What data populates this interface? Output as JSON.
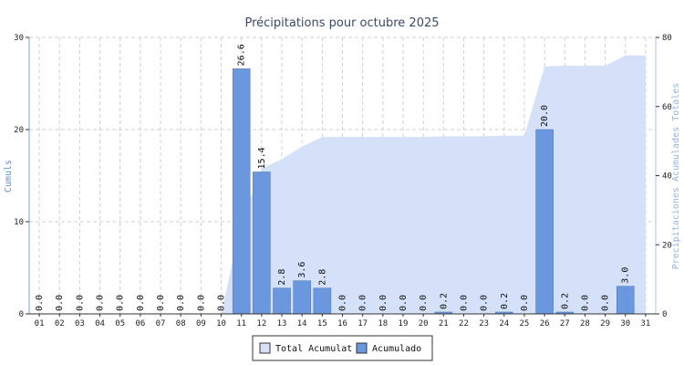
{
  "chart_data": {
    "type": "bar",
    "title": "Précipitations pour octubre 2025",
    "ylabel_left": "Cumuls",
    "ylabel_right": "Precipitaciones Acumulades Totales",
    "categories": [
      "01",
      "02",
      "03",
      "04",
      "05",
      "06",
      "07",
      "08",
      "09",
      "10",
      "11",
      "12",
      "13",
      "14",
      "15",
      "16",
      "17",
      "18",
      "19",
      "20",
      "21",
      "22",
      "23",
      "24",
      "25",
      "26",
      "27",
      "28",
      "29",
      "30",
      "31"
    ],
    "ylim_left": [
      0,
      30
    ],
    "yticks_left": [
      0,
      10,
      20,
      30
    ],
    "ylim_right": [
      0,
      80
    ],
    "yticks_right": [
      0,
      20,
      40,
      60,
      80
    ],
    "grid": true,
    "legend_position": "bottom-center",
    "series": [
      {
        "name": "Acumulado",
        "kind": "bar",
        "axis": "left",
        "color": "#6b97df",
        "values": [
          0.0,
          0.0,
          0.0,
          0.0,
          0.0,
          0.0,
          0.0,
          0.0,
          0.0,
          0.0,
          26.6,
          15.4,
          2.8,
          3.6,
          2.8,
          0.0,
          0.0,
          0.0,
          0.0,
          0.0,
          0.2,
          0.0,
          0.0,
          0.2,
          0.0,
          20.0,
          0.2,
          0.0,
          0.0,
          3.0,
          null
        ],
        "labels": [
          "0.0",
          "0.0",
          "0.0",
          "0.0",
          "0.0",
          "0.0",
          "0.0",
          "0.0",
          "0.0",
          "0.0",
          "26.6",
          "15.4",
          "2.8",
          "3.6",
          "2.8",
          "0.0",
          "0.0",
          "0.0",
          "0.0",
          "0.0",
          "0.2",
          "0.0",
          "0.0",
          "0.2",
          "0.0",
          "20.0",
          "0.2",
          "0.0",
          "0.0",
          "3.0",
          ""
        ]
      },
      {
        "name": "Total Acumulat",
        "kind": "area",
        "axis": "right",
        "color": "#d4e1f9",
        "values": [
          0,
          0,
          0,
          0,
          0,
          0,
          0,
          0,
          0,
          0,
          26.6,
          42.0,
          44.8,
          48.4,
          51.2,
          51.2,
          51.2,
          51.2,
          51.2,
          51.2,
          51.4,
          51.4,
          51.4,
          51.6,
          51.6,
          71.6,
          71.8,
          71.8,
          71.8,
          74.8,
          74.8
        ]
      }
    ]
  }
}
